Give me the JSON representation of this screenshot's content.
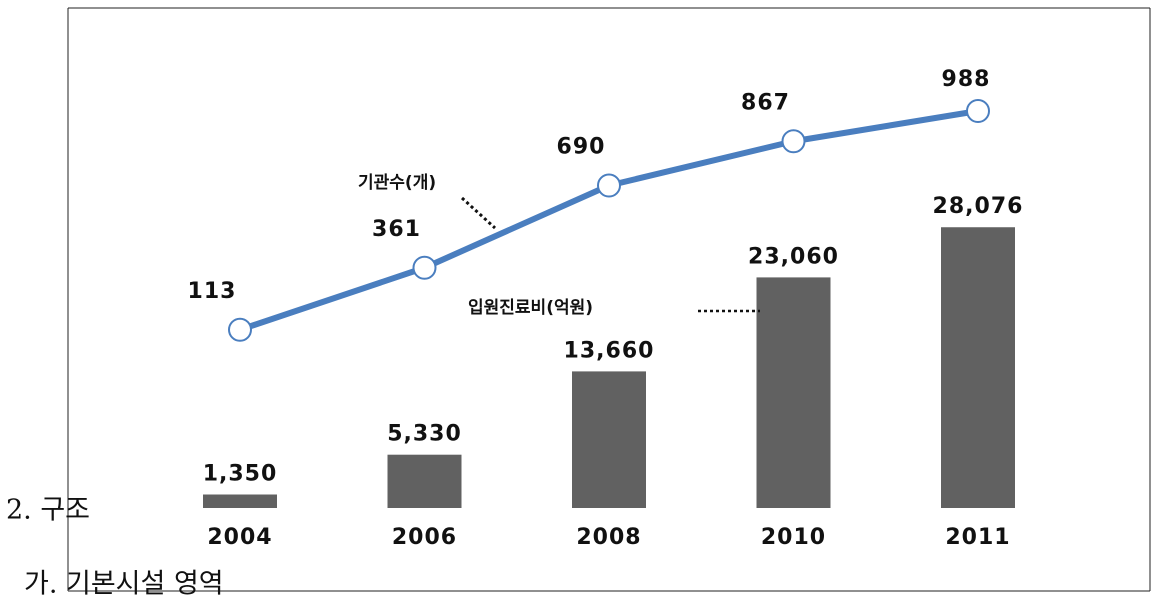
{
  "chart_data": {
    "type": "bar-line",
    "categories": [
      "2004",
      "2006",
      "2008",
      "2010",
      "2011"
    ],
    "series": [
      {
        "name": "입원진료비(억원)",
        "type": "bar",
        "color": "#616161",
        "values": [
          1350,
          5330,
          13660,
          23060,
          28076
        ],
        "value_labels": [
          "1,350",
          "5,330",
          "13,660",
          "23,060",
          "28,076"
        ]
      },
      {
        "name": "기관수(개)",
        "type": "line",
        "axis": "y2",
        "color": "#4a7ebf",
        "values": [
          113,
          361,
          690,
          867,
          988
        ]
      }
    ],
    "ylim": [
      0,
      50000
    ],
    "y2lim": [
      -600,
      1400
    ]
  },
  "document": {
    "heading": "2. 구조",
    "subheading": "가. 기본시설 영역"
  }
}
